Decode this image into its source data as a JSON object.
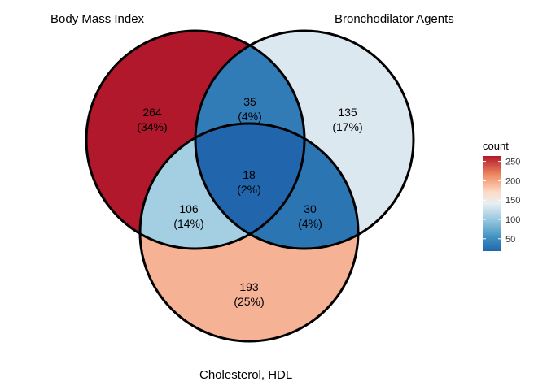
{
  "sets": [
    {
      "id": "A",
      "label": "Body Mass Index"
    },
    {
      "id": "B",
      "label": "Bronchodilator Agents"
    },
    {
      "id": "C",
      "label": "Cholesterol, HDL"
    }
  ],
  "regions": [
    {
      "id": "A",
      "count": "264",
      "percent": "(34%)",
      "value": 264
    },
    {
      "id": "B",
      "count": "135",
      "percent": "(17%)",
      "value": 135
    },
    {
      "id": "C",
      "count": "193",
      "percent": "(25%)",
      "value": 193
    },
    {
      "id": "AB",
      "count": "35",
      "percent": "(4%)",
      "value": 35
    },
    {
      "id": "AC",
      "count": "106",
      "percent": "(14%)",
      "value": 106
    },
    {
      "id": "BC",
      "count": "30",
      "percent": "(4%)",
      "value": 30
    },
    {
      "id": "ABC",
      "count": "18",
      "percent": "(2%)",
      "value": 18
    }
  ],
  "legend": {
    "title": "count",
    "ticks": [
      {
        "value": 250,
        "label": "250"
      },
      {
        "value": 200,
        "label": "200"
      },
      {
        "value": 150,
        "label": "150"
      },
      {
        "value": 100,
        "label": "100"
      },
      {
        "value": 50,
        "label": "50"
      }
    ],
    "min": 18,
    "max": 264
  },
  "colors": {
    "high": "#b2182b",
    "mid_high": "#ef8a62",
    "mid_light": "#fddbc7",
    "mid": "#f7f7f7",
    "low_light": "#d1e5f0",
    "low_mid": "#67a9cf",
    "low": "#2166ac",
    "outline": "#000000"
  }
}
